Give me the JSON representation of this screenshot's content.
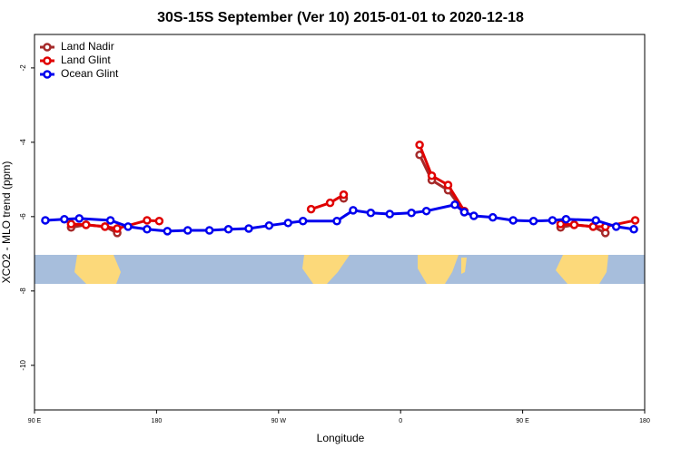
{
  "chart_data": {
    "type": "line",
    "title": "30S-15S September (Ver 10)   2015-01-01 to 2020-12-18",
    "x_label": "Longitude",
    "y_label": "XCO2 - MLO trend (ppm)",
    "xlim": [
      90,
      540
    ],
    "xticks": [
      {
        "value": 90,
        "label": "90 E"
      },
      {
        "value": 180,
        "label": "180"
      },
      {
        "value": 270,
        "label": "90 W"
      },
      {
        "value": 360,
        "label": "0"
      },
      {
        "value": 450,
        "label": "90 E"
      },
      {
        "value": 540,
        "label": "180"
      }
    ],
    "ylim": [
      -11.2,
      -1.1
    ],
    "yticks": [
      -10,
      -8,
      -6,
      -4,
      -2
    ],
    "legend": "top-left",
    "series": [
      {
        "name": "Land Nadir",
        "color": "#a52a2a",
        "x": [
          117,
          128,
          142,
          151,
          null,
          318,
          null,
          374,
          383,
          395,
          407,
          null,
          478,
          488,
          502,
          511
        ],
        "values": [
          -6.29,
          -6.22,
          -6.27,
          -6.44,
          null,
          -5.51,
          null,
          -4.34,
          -5.02,
          -5.29,
          -5.88,
          null,
          -6.29,
          -6.22,
          -6.27,
          -6.44
        ]
      },
      {
        "name": "Land Glint",
        "color": "#e00000",
        "x": [
          117,
          128,
          142,
          151,
          173,
          182,
          null,
          294,
          308,
          318,
          null,
          374,
          383,
          395,
          407,
          null,
          478,
          488,
          502,
          511,
          533
        ],
        "values": [
          -6.2,
          -6.22,
          -6.27,
          -6.32,
          -6.1,
          -6.12,
          null,
          -5.8,
          -5.63,
          -5.41,
          null,
          -4.07,
          -4.9,
          -5.15,
          -5.85,
          null,
          -6.2,
          -6.22,
          -6.27,
          -6.27,
          -6.1
        ]
      },
      {
        "name": "Ocean Glint",
        "color": "#0000ee",
        "x": [
          98,
          112,
          123,
          146,
          159,
          173,
          188,
          203,
          219,
          233,
          248,
          263,
          277,
          288,
          313,
          325,
          338,
          352,
          368,
          379,
          400,
          407,
          414,
          428,
          443,
          458,
          472,
          482,
          504,
          519,
          532
        ],
        "values": [
          -6.1,
          -6.07,
          -6.05,
          -6.1,
          -6.27,
          -6.34,
          -6.39,
          -6.37,
          -6.37,
          -6.34,
          -6.32,
          -6.24,
          -6.17,
          -6.12,
          -6.12,
          -5.83,
          -5.9,
          -5.93,
          -5.9,
          -5.85,
          -5.68,
          -5.88,
          -5.98,
          -6.02,
          -6.1,
          -6.12,
          -6.1,
          -6.07,
          -6.1,
          -6.27,
          -6.34
        ]
      }
    ]
  }
}
